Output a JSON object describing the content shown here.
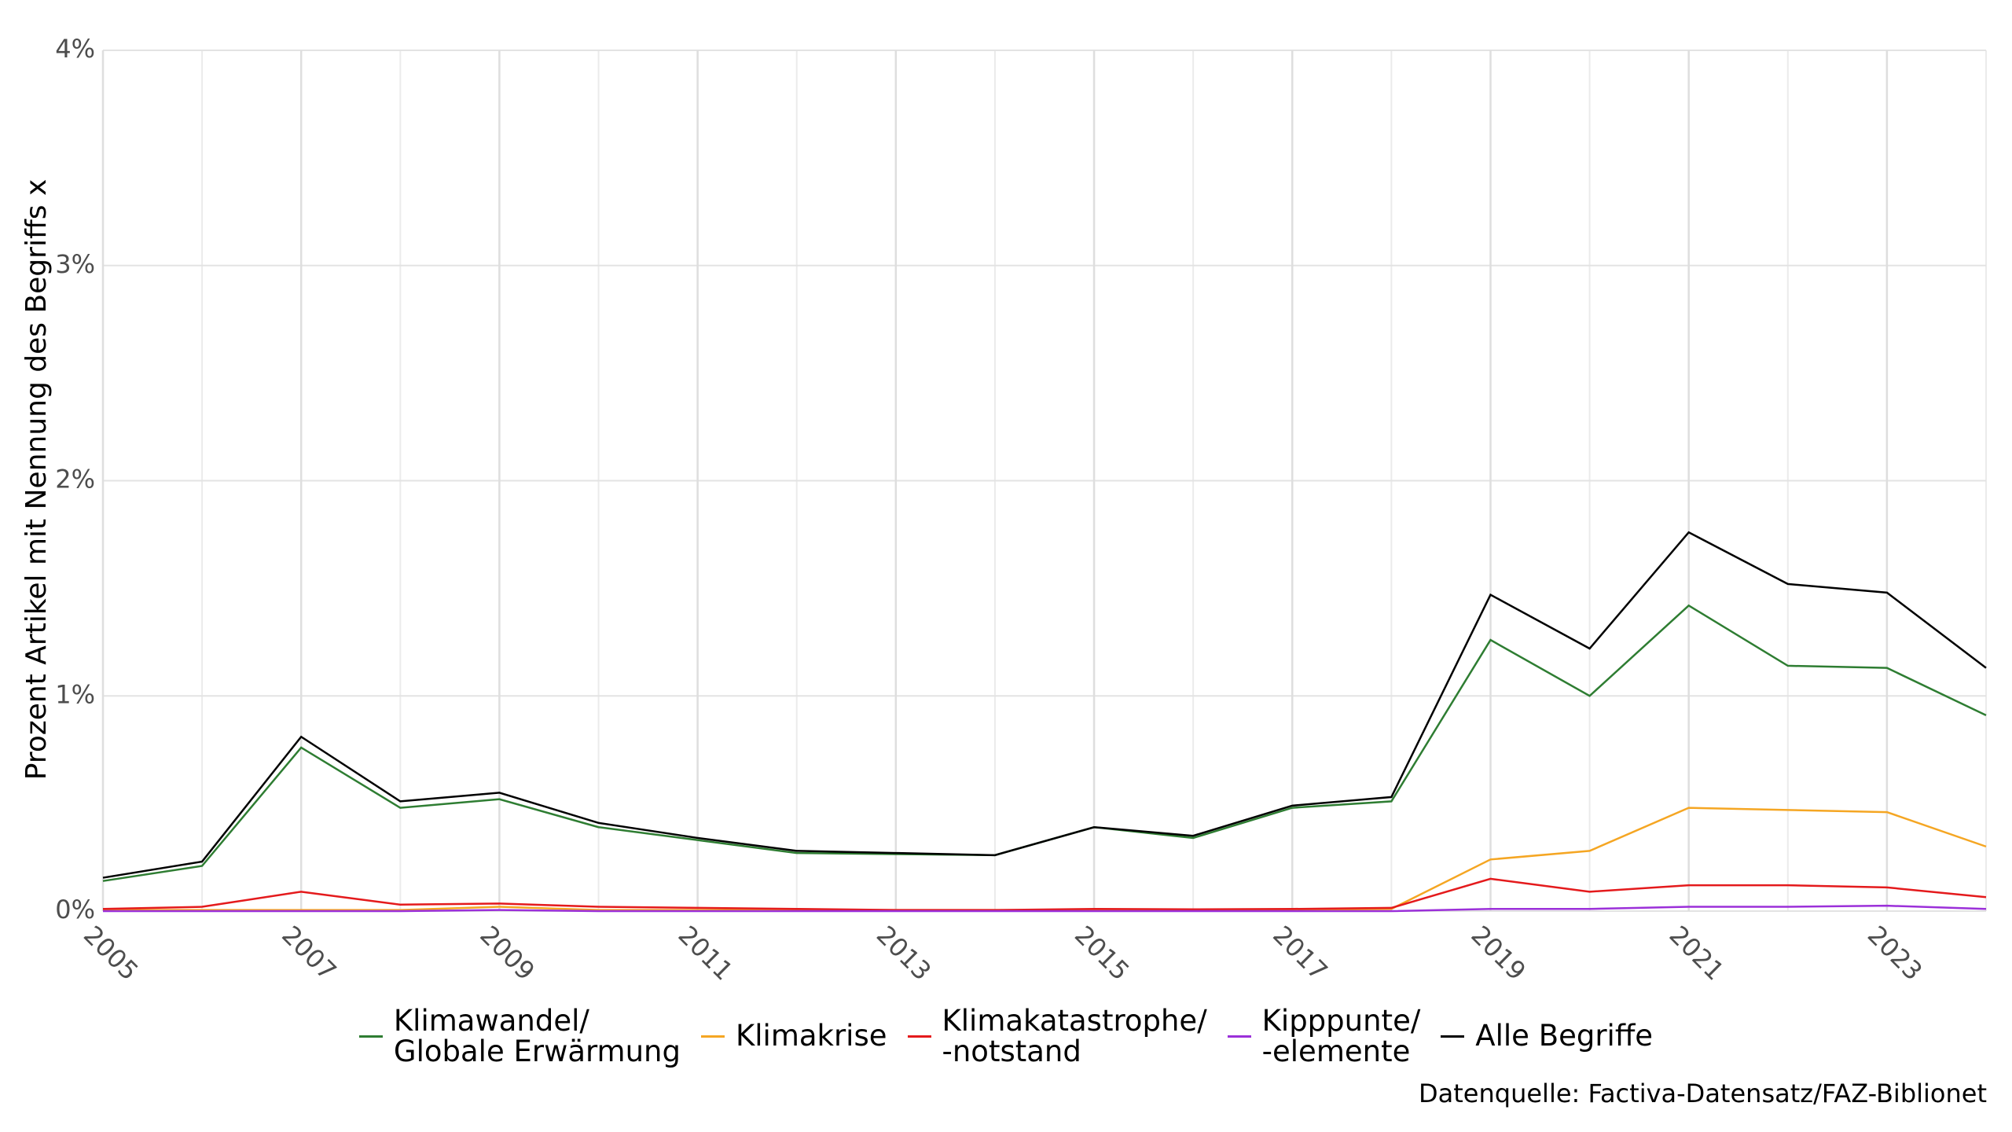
{
  "chart_data": {
    "type": "line",
    "y_label": "Prozent Artikel mit Nennung des Begriffs x",
    "source": "Datenquelle: Factiva-Datensatz/FAZ-Biblionet",
    "x": [
      2005,
      2006,
      2007,
      2008,
      2009,
      2010,
      2011,
      2012,
      2013,
      2014,
      2015,
      2016,
      2017,
      2018,
      2019,
      2020,
      2021,
      2022,
      2023,
      2024
    ],
    "xlim": [
      2005,
      2024
    ],
    "xticks": [
      2005,
      2007,
      2009,
      2011,
      2013,
      2015,
      2017,
      2019,
      2021,
      2023
    ],
    "ylim": [
      0,
      4
    ],
    "yticks": [
      {
        "value": 0,
        "label": "0%"
      },
      {
        "value": 1,
        "label": "1%"
      },
      {
        "value": 2,
        "label": "2%"
      },
      {
        "value": 3,
        "label": "3%"
      },
      {
        "value": 4,
        "label": "4%"
      }
    ],
    "grid": true,
    "legend": "bottom",
    "series": [
      {
        "name": "Klimawandel/\nGlobale Erwärmung",
        "color": "#2e7d32",
        "values": [
          0.14,
          0.21,
          0.76,
          0.48,
          0.52,
          0.39,
          0.33,
          0.27,
          0.265,
          0.26,
          0.39,
          0.34,
          0.48,
          0.51,
          1.26,
          1.0,
          1.42,
          1.14,
          1.13,
          0.91
        ]
      },
      {
        "name": "Klimakrise",
        "color": "#f5a623",
        "values": [
          0.005,
          0.005,
          0.005,
          0.005,
          0.02,
          0.005,
          0.005,
          0.005,
          0.005,
          0.005,
          0.005,
          0.005,
          0.005,
          0.01,
          0.24,
          0.28,
          0.48,
          0.47,
          0.46,
          0.3
        ]
      },
      {
        "name": "Klimakatastrophe/\n-notstand",
        "color": "#e41a1c",
        "values": [
          0.01,
          0.02,
          0.09,
          0.03,
          0.035,
          0.02,
          0.015,
          0.01,
          0.005,
          0.005,
          0.01,
          0.008,
          0.01,
          0.015,
          0.15,
          0.09,
          0.12,
          0.12,
          0.11,
          0.065
        ]
      },
      {
        "name": "Kipppunte/\n-elemente",
        "color": "#9b30d9",
        "values": [
          0,
          0,
          0,
          0,
          0.005,
          0,
          0,
          0,
          0,
          0,
          0,
          0,
          0,
          0,
          0.01,
          0.01,
          0.02,
          0.02,
          0.025,
          0.01
        ]
      },
      {
        "name": "Alle Begriffe",
        "color": "#000000",
        "values": [
          0.155,
          0.23,
          0.81,
          0.51,
          0.55,
          0.41,
          0.34,
          0.28,
          0.27,
          0.26,
          0.39,
          0.35,
          0.49,
          0.53,
          1.47,
          1.22,
          1.76,
          1.52,
          1.48,
          1.13
        ]
      }
    ]
  }
}
